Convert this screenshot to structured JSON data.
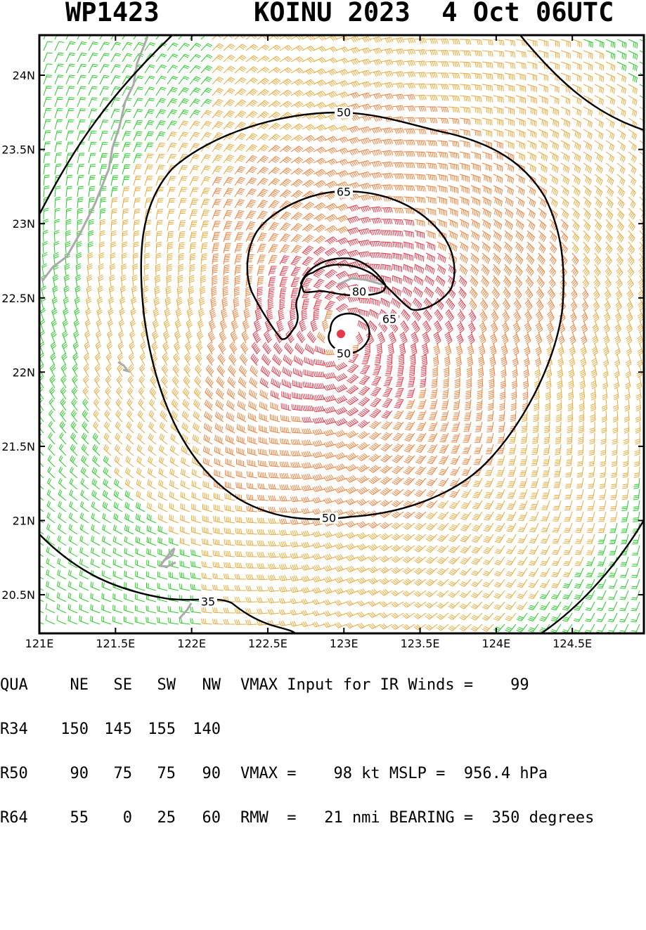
{
  "header": {
    "storm_id": "WP1423",
    "storm_title": "KOINU 2023  4 Oct 06UTC"
  },
  "map": {
    "lon_labels": [
      "121E",
      "121.5E",
      "122E",
      "122.5E",
      "123E",
      "123.5E",
      "124E",
      "124.5E"
    ],
    "lat_labels": [
      "24N",
      "23.5N",
      "23N",
      "22.5N",
      "22N",
      "21.5N",
      "21N",
      "20.5N"
    ],
    "lon_range": [
      121.0,
      124.97
    ],
    "lat_range": [
      20.24,
      24.27
    ],
    "storm_center": {
      "lon": 122.99,
      "lat": 22.26
    },
    "contour_labels": [
      "50",
      "65",
      "80",
      "65",
      "50",
      "50",
      "35"
    ],
    "colors": {
      "below_34kt": "#22cc22",
      "kt34_50": "#e8a838",
      "kt50_64": "#ee7f3a",
      "kt64_plus": "#e83848",
      "coastline": "#aaaaaa",
      "contour": "#000000"
    }
  },
  "info": {
    "quadrant_header": [
      "QUA",
      "NE",
      "SE",
      "SW",
      "NW"
    ],
    "r34": [
      "R34",
      "150",
      "145",
      "155",
      "140"
    ],
    "r50": [
      "R50",
      "90",
      "75",
      "75",
      "90"
    ],
    "r64": [
      "R64",
      "55",
      "0",
      "25",
      "60"
    ],
    "vmax_input_line": "VMAX Input for IR Winds =    99",
    "vmax_line": "VMAX =    98 kt MSLP =  956.4 hPa",
    "rmw_line": "RMW  =   21 nmi BEARING =  350 degrees"
  }
}
